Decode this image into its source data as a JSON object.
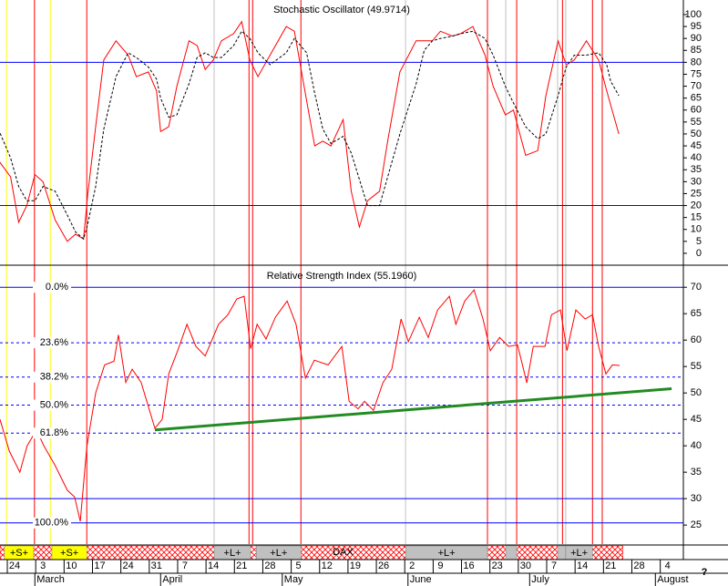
{
  "x_axis": {
    "xlim": [
      -3.6,
      164.9
    ],
    "xticks": [
      {
        "value": 0,
        "label": "24"
      },
      {
        "value": 7,
        "label": "3"
      },
      {
        "value": 14,
        "label": "10"
      },
      {
        "value": 21,
        "label": "17"
      },
      {
        "value": 28,
        "label": "24"
      },
      {
        "value": 35,
        "label": "31"
      },
      {
        "value": 42,
        "label": "7"
      },
      {
        "value": 49,
        "label": "14"
      },
      {
        "value": 56,
        "label": "21"
      },
      {
        "value": 63,
        "label": "28"
      },
      {
        "value": 70,
        "label": "5"
      },
      {
        "value": 77,
        "label": "12"
      },
      {
        "value": 84,
        "label": "19"
      },
      {
        "value": 91,
        "label": "26"
      },
      {
        "value": 98,
        "label": "2"
      },
      {
        "value": 105,
        "label": "9"
      },
      {
        "value": 112,
        "label": "16"
      },
      {
        "value": 119,
        "label": "23"
      },
      {
        "value": 126,
        "label": "30"
      },
      {
        "value": 133,
        "label": "7"
      },
      {
        "value": 140,
        "label": "14"
      },
      {
        "value": 147,
        "label": "21"
      },
      {
        "value": 154,
        "label": "28"
      },
      {
        "value": 161,
        "label": "4"
      }
    ],
    "months": [
      {
        "value": 5,
        "label": "March"
      },
      {
        "value": 36,
        "label": "April"
      },
      {
        "value": 66,
        "label": "May"
      },
      {
        "value": 97,
        "label": "June"
      },
      {
        "value": 127,
        "label": "July"
      },
      {
        "value": 158,
        "label": "August"
      }
    ]
  },
  "events": [
    {
      "x": -2,
      "color": "#ffff00"
    },
    {
      "x": 8.8,
      "color": "#ffff00"
    },
    {
      "x": 49.2,
      "color": "#c0c0c0"
    },
    {
      "x": 96.4,
      "color": "#c0c0c0"
    },
    {
      "x": 121.1,
      "color": "#c0c0c0"
    },
    {
      "x": 133.9,
      "color": "#c0c0c0"
    },
    {
      "x": 135.9,
      "color": "#c0c0c0"
    },
    {
      "x": 4.9,
      "color": "#ff0000"
    },
    {
      "x": 17.8,
      "color": "#ff0000"
    },
    {
      "x": 57.8,
      "color": "#ff0000"
    },
    {
      "x": 58.7,
      "color": "#ff0000"
    },
    {
      "x": 70.6,
      "color": "#ff0000"
    },
    {
      "x": 116.6,
      "color": "#ff0000"
    },
    {
      "x": 123.8,
      "color": "#ff0000"
    },
    {
      "x": 135.1,
      "color": "#ff0000"
    },
    {
      "x": 142.5,
      "color": "#ff0000"
    },
    {
      "x": 144.9,
      "color": "#ff0000"
    }
  ],
  "signal_bar": {
    "range": [
      -3.6,
      150
    ],
    "color": "#ff0000",
    "signals": [
      {
        "start": -2.5,
        "end": 4.7,
        "label": "+S+",
        "color": "#ffff00"
      },
      {
        "start": 9.2,
        "end": 17.8,
        "label": "+S+",
        "color": "#ffff00"
      },
      {
        "start": 49.2,
        "end": 58.2,
        "label": "+L+",
        "color": "#c0c0c0"
      },
      {
        "start": 59.6,
        "end": 70.6,
        "label": "+L+",
        "color": "#c0c0c0"
      },
      {
        "start": 96.4,
        "end": 116.6,
        "label": "+L+",
        "color": "#c0c0c0"
      },
      {
        "start": 121.1,
        "end": 123.8,
        "color": "#c0c0c0"
      },
      {
        "start": 133.9,
        "end": 135.9,
        "color": "#c0c0c0"
      },
      {
        "start": 135.9,
        "end": 142.5,
        "label": "+L+",
        "color": "#c0c0c0"
      }
    ],
    "annotations": [
      {
        "text": "DAX",
        "x": 81
      }
    ]
  },
  "help_label": "?",
  "chart_data": [
    {
      "type": "line",
      "title": "Stochastic Oscillator (49.9714)",
      "ylim": [
        -4.6,
        106.1
      ],
      "yticks": [
        0,
        5,
        10,
        15,
        20,
        25,
        30,
        35,
        40,
        45,
        50,
        55,
        60,
        65,
        70,
        75,
        80,
        85,
        90,
        95,
        100
      ],
      "hlines": [
        {
          "value": 80,
          "color": "#0000ff",
          "style": "solid"
        },
        {
          "value": 20,
          "color": "#0000ff",
          "style": "solid"
        }
      ],
      "x": [
        -4,
        -1,
        1,
        3,
        5,
        7,
        10,
        13,
        15,
        17,
        18,
        20,
        22,
        25,
        28,
        30,
        33,
        35,
        36,
        38,
        40,
        43,
        45,
        47,
        49,
        51,
        54,
        56,
        58,
        60,
        63,
        67,
        69,
        72,
        74,
        76,
        78,
        81,
        83,
        85,
        87,
        90,
        92,
        95,
        99,
        101,
        103,
        105,
        108,
        110,
        113,
        116,
        118,
        121,
        123,
        126,
        129,
        131,
        134,
        136,
        138,
        141,
        144,
        146,
        147,
        149
      ],
      "series": [
        {
          "color": "#ff0000",
          "style": "solid",
          "values": [
            39,
            32,
            13,
            20,
            33,
            30,
            14,
            5,
            8,
            6,
            24,
            53,
            81,
            89,
            83,
            74,
            76,
            68,
            51,
            53,
            70,
            89,
            87,
            77,
            81,
            89,
            92,
            97,
            81,
            74,
            83,
            95,
            93,
            64,
            45,
            47,
            45,
            56,
            26,
            11,
            22,
            26,
            47,
            76,
            89,
            89,
            89,
            93,
            91,
            92,
            95,
            83,
            70,
            58,
            60,
            41,
            43,
            66,
            89,
            79,
            81,
            89,
            81,
            68,
            62,
            50
          ]
        },
        {
          "color": "#000000",
          "style": "dashed",
          "values": [
            52,
            40,
            28,
            22,
            22,
            28,
            26,
            16,
            9,
            6,
            12,
            28,
            52,
            74,
            84,
            82,
            78,
            73,
            65,
            57,
            58,
            71,
            82,
            84,
            82,
            82,
            87,
            93,
            90,
            84,
            79,
            84,
            90,
            84,
            67,
            52,
            46,
            49,
            42,
            31,
            20,
            20,
            32,
            50,
            71,
            85,
            89,
            90,
            91,
            92,
            93,
            90,
            83,
            70,
            63,
            53,
            48,
            50,
            66,
            78,
            83,
            83,
            84,
            79,
            72,
            66
          ]
        }
      ]
    },
    {
      "type": "line",
      "title": "Relative Strength Index (55.1960)",
      "ylim": [
        21.4,
        74
      ],
      "yticks": [
        25,
        30,
        35,
        40,
        45,
        50,
        55,
        60,
        65,
        70
      ],
      "hlines": [
        {
          "value": 70,
          "label": "0.0%",
          "color": "#0000ff",
          "style": "solid"
        },
        {
          "value": 59.5,
          "label": "23.6%",
          "color": "#0000ff",
          "style": "dashed"
        },
        {
          "value": 53.0,
          "label": "38.2%",
          "color": "#0000ff",
          "style": "dashed"
        },
        {
          "value": 47.7,
          "label": "50.0%",
          "color": "#0000ff",
          "style": "dashed"
        },
        {
          "value": 42.4,
          "label": "61.8%",
          "color": "#0000ff",
          "style": "dashed"
        },
        {
          "value": 30,
          "color": "#0000ff",
          "style": "solid"
        },
        {
          "value": 25.4,
          "label": "100.0%",
          "color": "#0000ff",
          "style": "solid"
        }
      ],
      "x": [
        -3.6,
        -1.3,
        1.3,
        3.1,
        5.4,
        7.2,
        9.9,
        13,
        14.8,
        16.2,
        17.8,
        20,
        22.2,
        24.5,
        25.6,
        27.4,
        29,
        31.2,
        34.6,
        36.4,
        38,
        40.2,
        42.5,
        44.7,
        47,
        50.3,
        52.6,
        54.8,
        56.6,
        58.2,
        59.8,
        62,
        64.3,
        67.2,
        69.4,
        71.7,
        73.9,
        77.3,
        80.7,
        82.5,
        84.7,
        86.3,
        88.5,
        90.8,
        93,
        95.3,
        97.1,
        99.8,
        102,
        104.3,
        107.2,
        108.8,
        111,
        113.3,
        115.5,
        117.3,
        119.6,
        121.8,
        124,
        126.3,
        127.9,
        130.8,
        132.4,
        134.6,
        136.2,
        138.4,
        140.7,
        142.5,
        144,
        145.8,
        147.4,
        149.2
      ],
      "series": [
        {
          "color": "#ff0000",
          "style": "solid",
          "values": [
            45,
            39,
            35,
            40,
            43,
            40,
            36.4,
            31.6,
            30.3,
            25.7,
            39.8,
            50,
            55.3,
            56,
            61,
            52,
            54.5,
            52,
            43.3,
            45,
            53.6,
            58,
            63,
            58.8,
            57,
            63,
            64.8,
            67.8,
            68.3,
            58.4,
            63,
            60.2,
            64.3,
            67.4,
            63,
            52.8,
            56.2,
            55.3,
            58.8,
            48.4,
            47,
            48.4,
            46.7,
            51.9,
            54.5,
            64,
            59.7,
            64.3,
            60.5,
            65.7,
            68.3,
            63,
            67.4,
            69.5,
            64,
            58,
            60.5,
            58.8,
            59.1,
            51.9,
            58.8,
            58.8,
            64.8,
            65.7,
            58,
            65.7,
            64,
            64.8,
            58.8,
            53.6,
            55.3,
            55.2
          ]
        }
      ],
      "trendline": {
        "x": [
          34.6,
          162
        ],
        "values": [
          43,
          50.8
        ],
        "color": "#228b22"
      }
    }
  ]
}
